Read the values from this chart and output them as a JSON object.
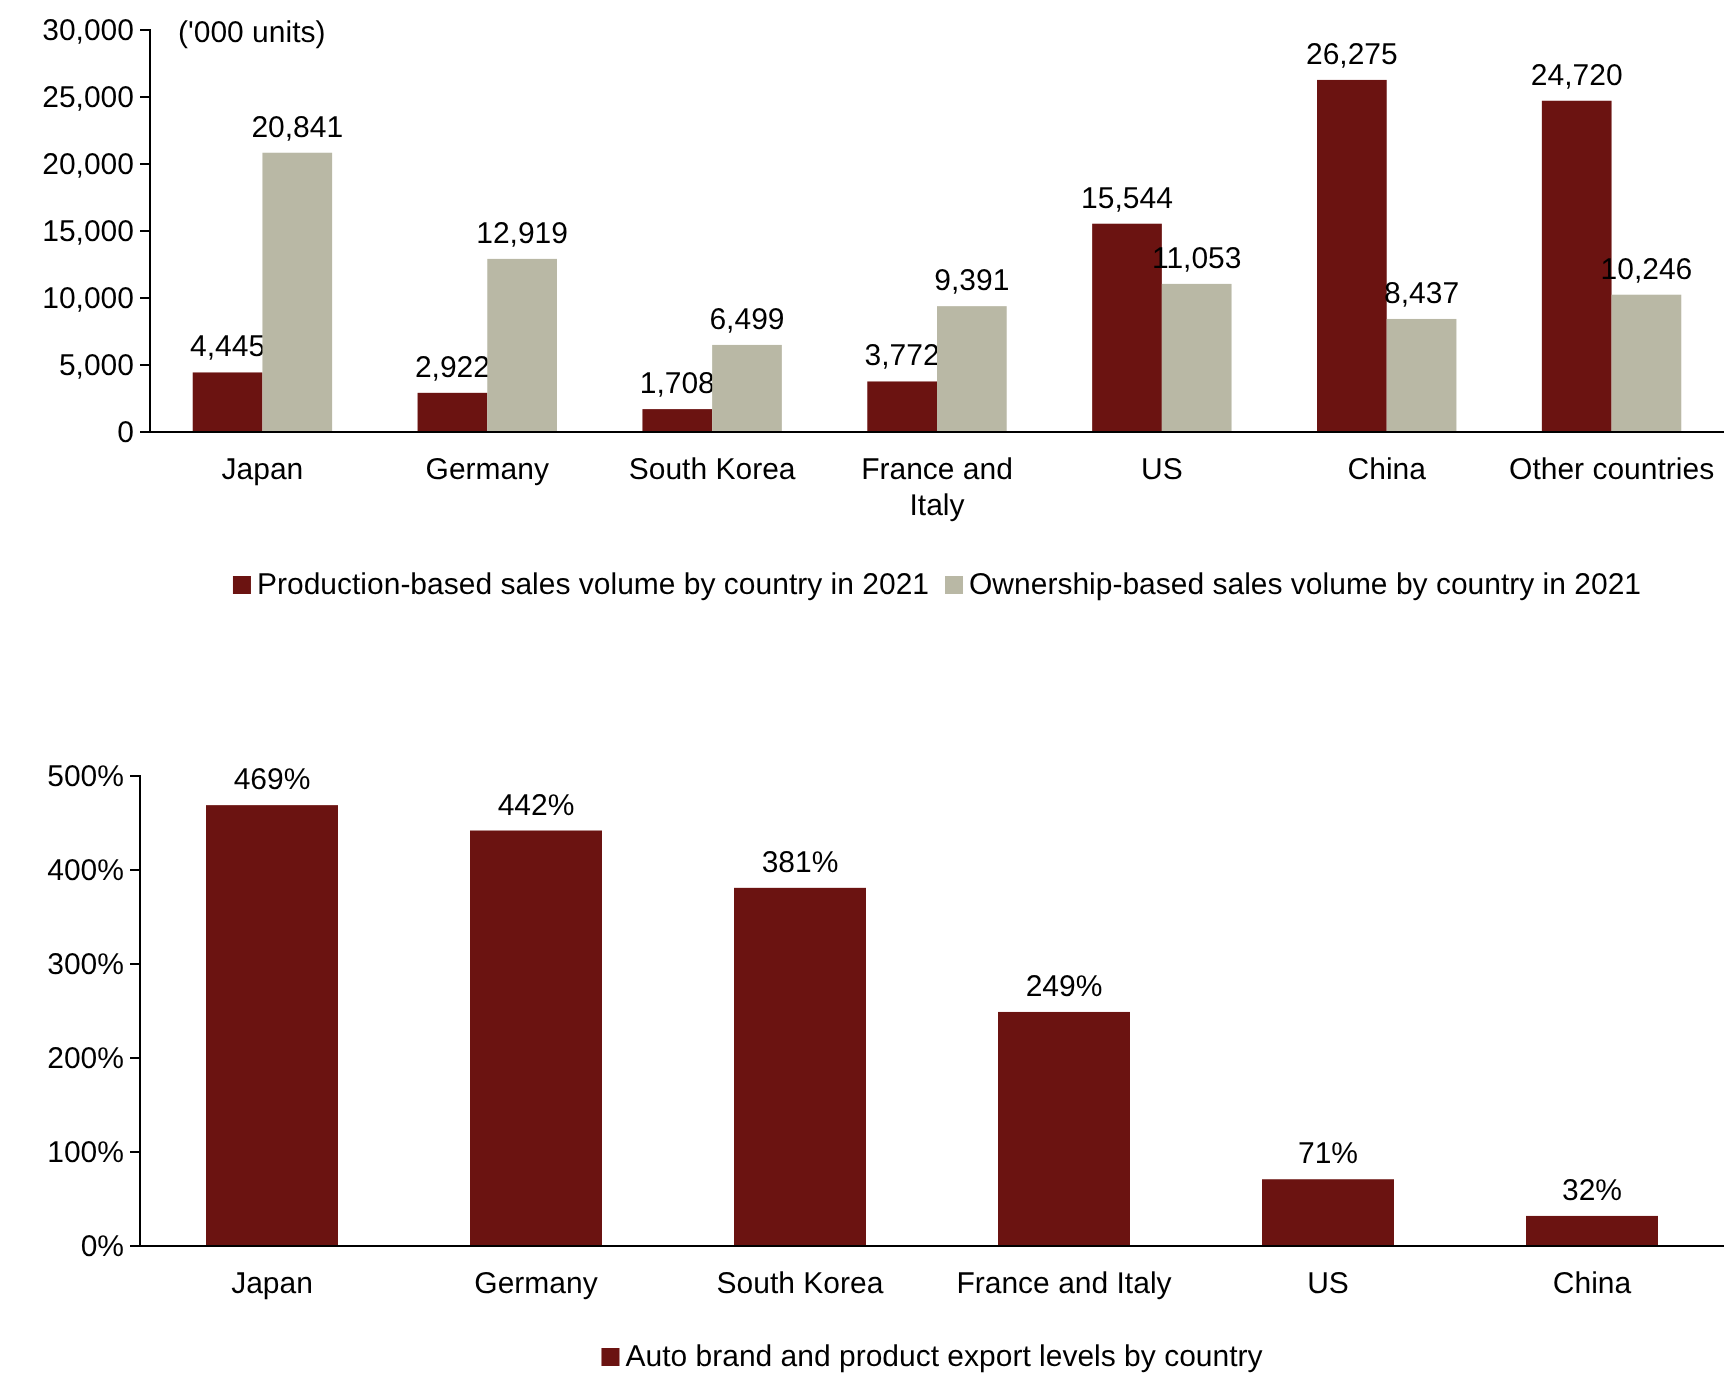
{
  "chart_data": [
    {
      "type": "bar",
      "annotations": [
        "('000 units)"
      ],
      "categories": [
        "Japan",
        "Germany",
        "South Korea",
        "France and Italy",
        "US",
        "China",
        "Other countries"
      ],
      "series": [
        {
          "name": "Production-based sales volume by country in 2021",
          "color": "#6b1311",
          "values": [
            4445,
            2922,
            1708,
            3772,
            15544,
            26275,
            24720
          ],
          "value_labels": [
            "4,445",
            "2,922",
            "1,708",
            "3,772",
            "15,544",
            "26,275",
            "24,720"
          ]
        },
        {
          "name": "Ownership-based sales volume by country in 2021",
          "color": "#b9b8a5",
          "values": [
            20841,
            12919,
            6499,
            9391,
            11053,
            8437,
            10246
          ],
          "value_labels": [
            "20,841",
            "12,919",
            "6,499",
            "9,391",
            "11,053",
            "8,437",
            "10,246"
          ]
        }
      ],
      "ylim": [
        0,
        30000
      ],
      "yticks": [
        0,
        {
          "value": 5000,
          "label": "5,000"
        },
        {
          "value": 10000,
          "label": "10,000"
        },
        {
          "value": 15000,
          "label": "15,000"
        },
        {
          "value": 20000,
          "label": "20,000"
        },
        {
          "value": 25000,
          "label": "25,000"
        },
        {
          "value": 30000,
          "label": "30,000"
        }
      ],
      "grid": false,
      "legend": "bottom"
    },
    {
      "type": "bar",
      "categories": [
        "Japan",
        "Germany",
        "South Korea",
        "France and Italy",
        "US",
        "China"
      ],
      "series": [
        {
          "name": "Auto brand and product export levels by country",
          "color": "#6b1311",
          "values": [
            469,
            442,
            381,
            249,
            71,
            32
          ],
          "value_labels": [
            "469%",
            "442%",
            "381%",
            "249%",
            "71%",
            "32%"
          ]
        }
      ],
      "ylim": [
        0,
        500
      ],
      "yticks": [
        {
          "value": 0,
          "label": "0%"
        },
        {
          "value": 100,
          "label": "100%"
        },
        {
          "value": 200,
          "label": "200%"
        },
        {
          "value": 300,
          "label": "300%"
        },
        {
          "value": 400,
          "label": "400%"
        },
        {
          "value": 500,
          "label": "500%"
        }
      ],
      "grid": false,
      "legend": "bottom"
    }
  ]
}
